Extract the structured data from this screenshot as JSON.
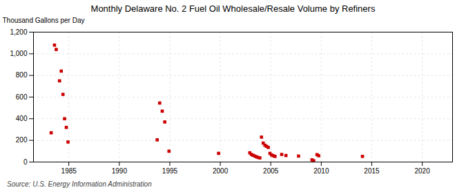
{
  "chart_data": {
    "type": "scatter",
    "title": "Monthly Delaware No. 2 Fuel Oil Wholesale/Resale Volume by Refiners",
    "ylabel": "Thousand Gallons per Day",
    "source": "Source: U.S. Energy Information Administration",
    "color": "#cc0000",
    "marker": "square",
    "grid": true,
    "xlim": [
      1981.5,
      2023
    ],
    "ylim": [
      0,
      1200
    ],
    "xticks": [
      1985,
      1990,
      1995,
      2000,
      2005,
      2010,
      2015,
      2020
    ],
    "yticks": [
      0,
      200,
      400,
      600,
      800,
      {
        "value": 1000,
        "label": "1,000"
      },
      {
        "value": 1200,
        "label": "1,200"
      }
    ],
    "x": [
      1983.25,
      1983.58,
      1983.75,
      1984.08,
      1984.25,
      1984.42,
      1984.58,
      1984.75,
      1984.92,
      1993.75,
      1994.0,
      1994.25,
      1994.5,
      1994.92,
      1999.83,
      2002.92,
      2003.08,
      2003.25,
      2003.42,
      2003.58,
      2003.75,
      2003.92,
      2004.08,
      2004.25,
      2004.42,
      2004.58,
      2004.75,
      2004.92,
      2005.08,
      2005.25,
      2005.42,
      2006.08,
      2006.5,
      2007.75,
      2009.08,
      2009.25,
      2009.58,
      2009.75,
      2014.08
    ],
    "values": [
      270,
      1080,
      1040,
      750,
      840,
      625,
      400,
      320,
      185,
      205,
      545,
      470,
      370,
      100,
      80,
      85,
      70,
      62,
      55,
      48,
      42,
      38,
      230,
      175,
      155,
      145,
      135,
      80,
      65,
      58,
      52,
      70,
      60,
      55,
      20,
      12,
      68,
      58,
      52
    ]
  }
}
